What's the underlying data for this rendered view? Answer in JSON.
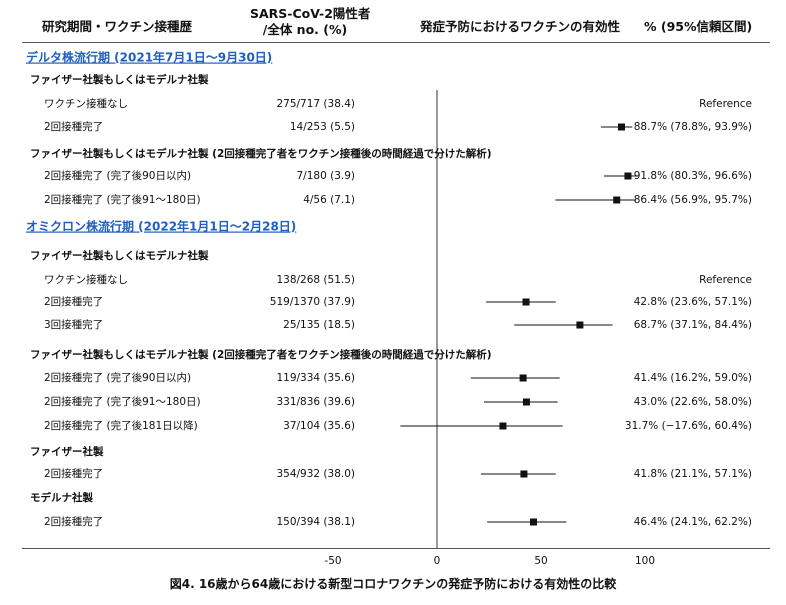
{
  "header": {
    "col1": "研究期間・ワクチン接種歴",
    "col2_line1": "SARS-CoV-2陽性者",
    "col2_line2": "/全体 no. (%)",
    "col3": "発症予防におけるワクチンの有効性",
    "col4": "% (95%信頼区間)"
  },
  "caption": "図4. 16歳から64歳における新型コロナワクチンの発症予防における有効性の比較",
  "chart_data": {
    "type": "forest",
    "x_ticks": [
      -50,
      0,
      50,
      100
    ],
    "xlim": [
      -50,
      100
    ],
    "rows": [
      {
        "kind": "period",
        "label": "デルタ株流行期 (2021年7月1日〜9月30日)"
      },
      {
        "kind": "section",
        "label": "ファイザー社製もしくはモデルナ社製"
      },
      {
        "kind": "data",
        "label": "ワクチン接種なし",
        "count": "275/717 (38.4)",
        "effect": "Reference"
      },
      {
        "kind": "data",
        "label": "2回接種完了",
        "count": "14/253 (5.5)",
        "est": 88.7,
        "lo": 78.8,
        "hi": 93.9,
        "effect": "88.7% (78.8%, 93.9%)"
      },
      {
        "kind": "section",
        "label": "ファイザー社製もしくはモデルナ社製 (2回接種完了者をワクチン接種後の時間経過で分けた解析)"
      },
      {
        "kind": "data",
        "label": "2回接種完了 (完了後90日以内)",
        "count": "7/180 (3.9)",
        "est": 91.8,
        "lo": 80.3,
        "hi": 96.6,
        "effect": "91.8% (80.3%, 96.6%)"
      },
      {
        "kind": "data",
        "label": "2回接種完了 (完了後91〜180日)",
        "count": "4/56 (7.1)",
        "est": 86.4,
        "lo": 56.9,
        "hi": 95.7,
        "effect": "86.4% (56.9%, 95.7%)"
      },
      {
        "kind": "period",
        "label": "オミクロン株流行期 (2022年1月1日〜2月28日)"
      },
      {
        "kind": "section",
        "label": "ファイザー社製もしくはモデルナ社製"
      },
      {
        "kind": "data",
        "label": "ワクチン接種なし",
        "count": "138/268 (51.5)",
        "effect": "Reference"
      },
      {
        "kind": "data",
        "label": "2回接種完了",
        "count": "519/1370 (37.9)",
        "est": 42.8,
        "lo": 23.6,
        "hi": 57.1,
        "effect": "42.8% (23.6%, 57.1%)"
      },
      {
        "kind": "data",
        "label": "3回接種完了",
        "count": "25/135 (18.5)",
        "est": 68.7,
        "lo": 37.1,
        "hi": 84.4,
        "effect": "68.7% (37.1%, 84.4%)"
      },
      {
        "kind": "section",
        "label": "ファイザー社製もしくはモデルナ社製 (2回接種完了者をワクチン接種後の時間経過で分けた解析)"
      },
      {
        "kind": "data",
        "label": "2回接種完了 (完了後90日以内)",
        "count": "119/334 (35.6)",
        "est": 41.4,
        "lo": 16.2,
        "hi": 59.0,
        "effect": "41.4% (16.2%, 59.0%)"
      },
      {
        "kind": "data",
        "label": "2回接種完了 (完了後91〜180日)",
        "count": "331/836 (39.6)",
        "est": 43.0,
        "lo": 22.6,
        "hi": 58.0,
        "effect": "43.0% (22.6%, 58.0%)"
      },
      {
        "kind": "data",
        "label": "2回接種完了 (完了後181日以降)",
        "count": "37/104 (35.6)",
        "est": 31.7,
        "lo": -17.6,
        "hi": 60.4,
        "effect": "31.7% (−17.6%, 60.4%)"
      },
      {
        "kind": "section",
        "label": "ファイザー社製"
      },
      {
        "kind": "data",
        "label": "2回接種完了",
        "count": "354/932 (38.0)",
        "est": 41.8,
        "lo": 21.1,
        "hi": 57.1,
        "effect": "41.8% (21.1%, 57.1%)"
      },
      {
        "kind": "section",
        "label": "モデルナ社製"
      },
      {
        "kind": "data",
        "label": "2回接種完了",
        "count": "150/394 (38.1)",
        "est": 46.4,
        "lo": 24.1,
        "hi": 62.2,
        "effect": "46.4% (24.1%, 62.2%)"
      }
    ]
  }
}
